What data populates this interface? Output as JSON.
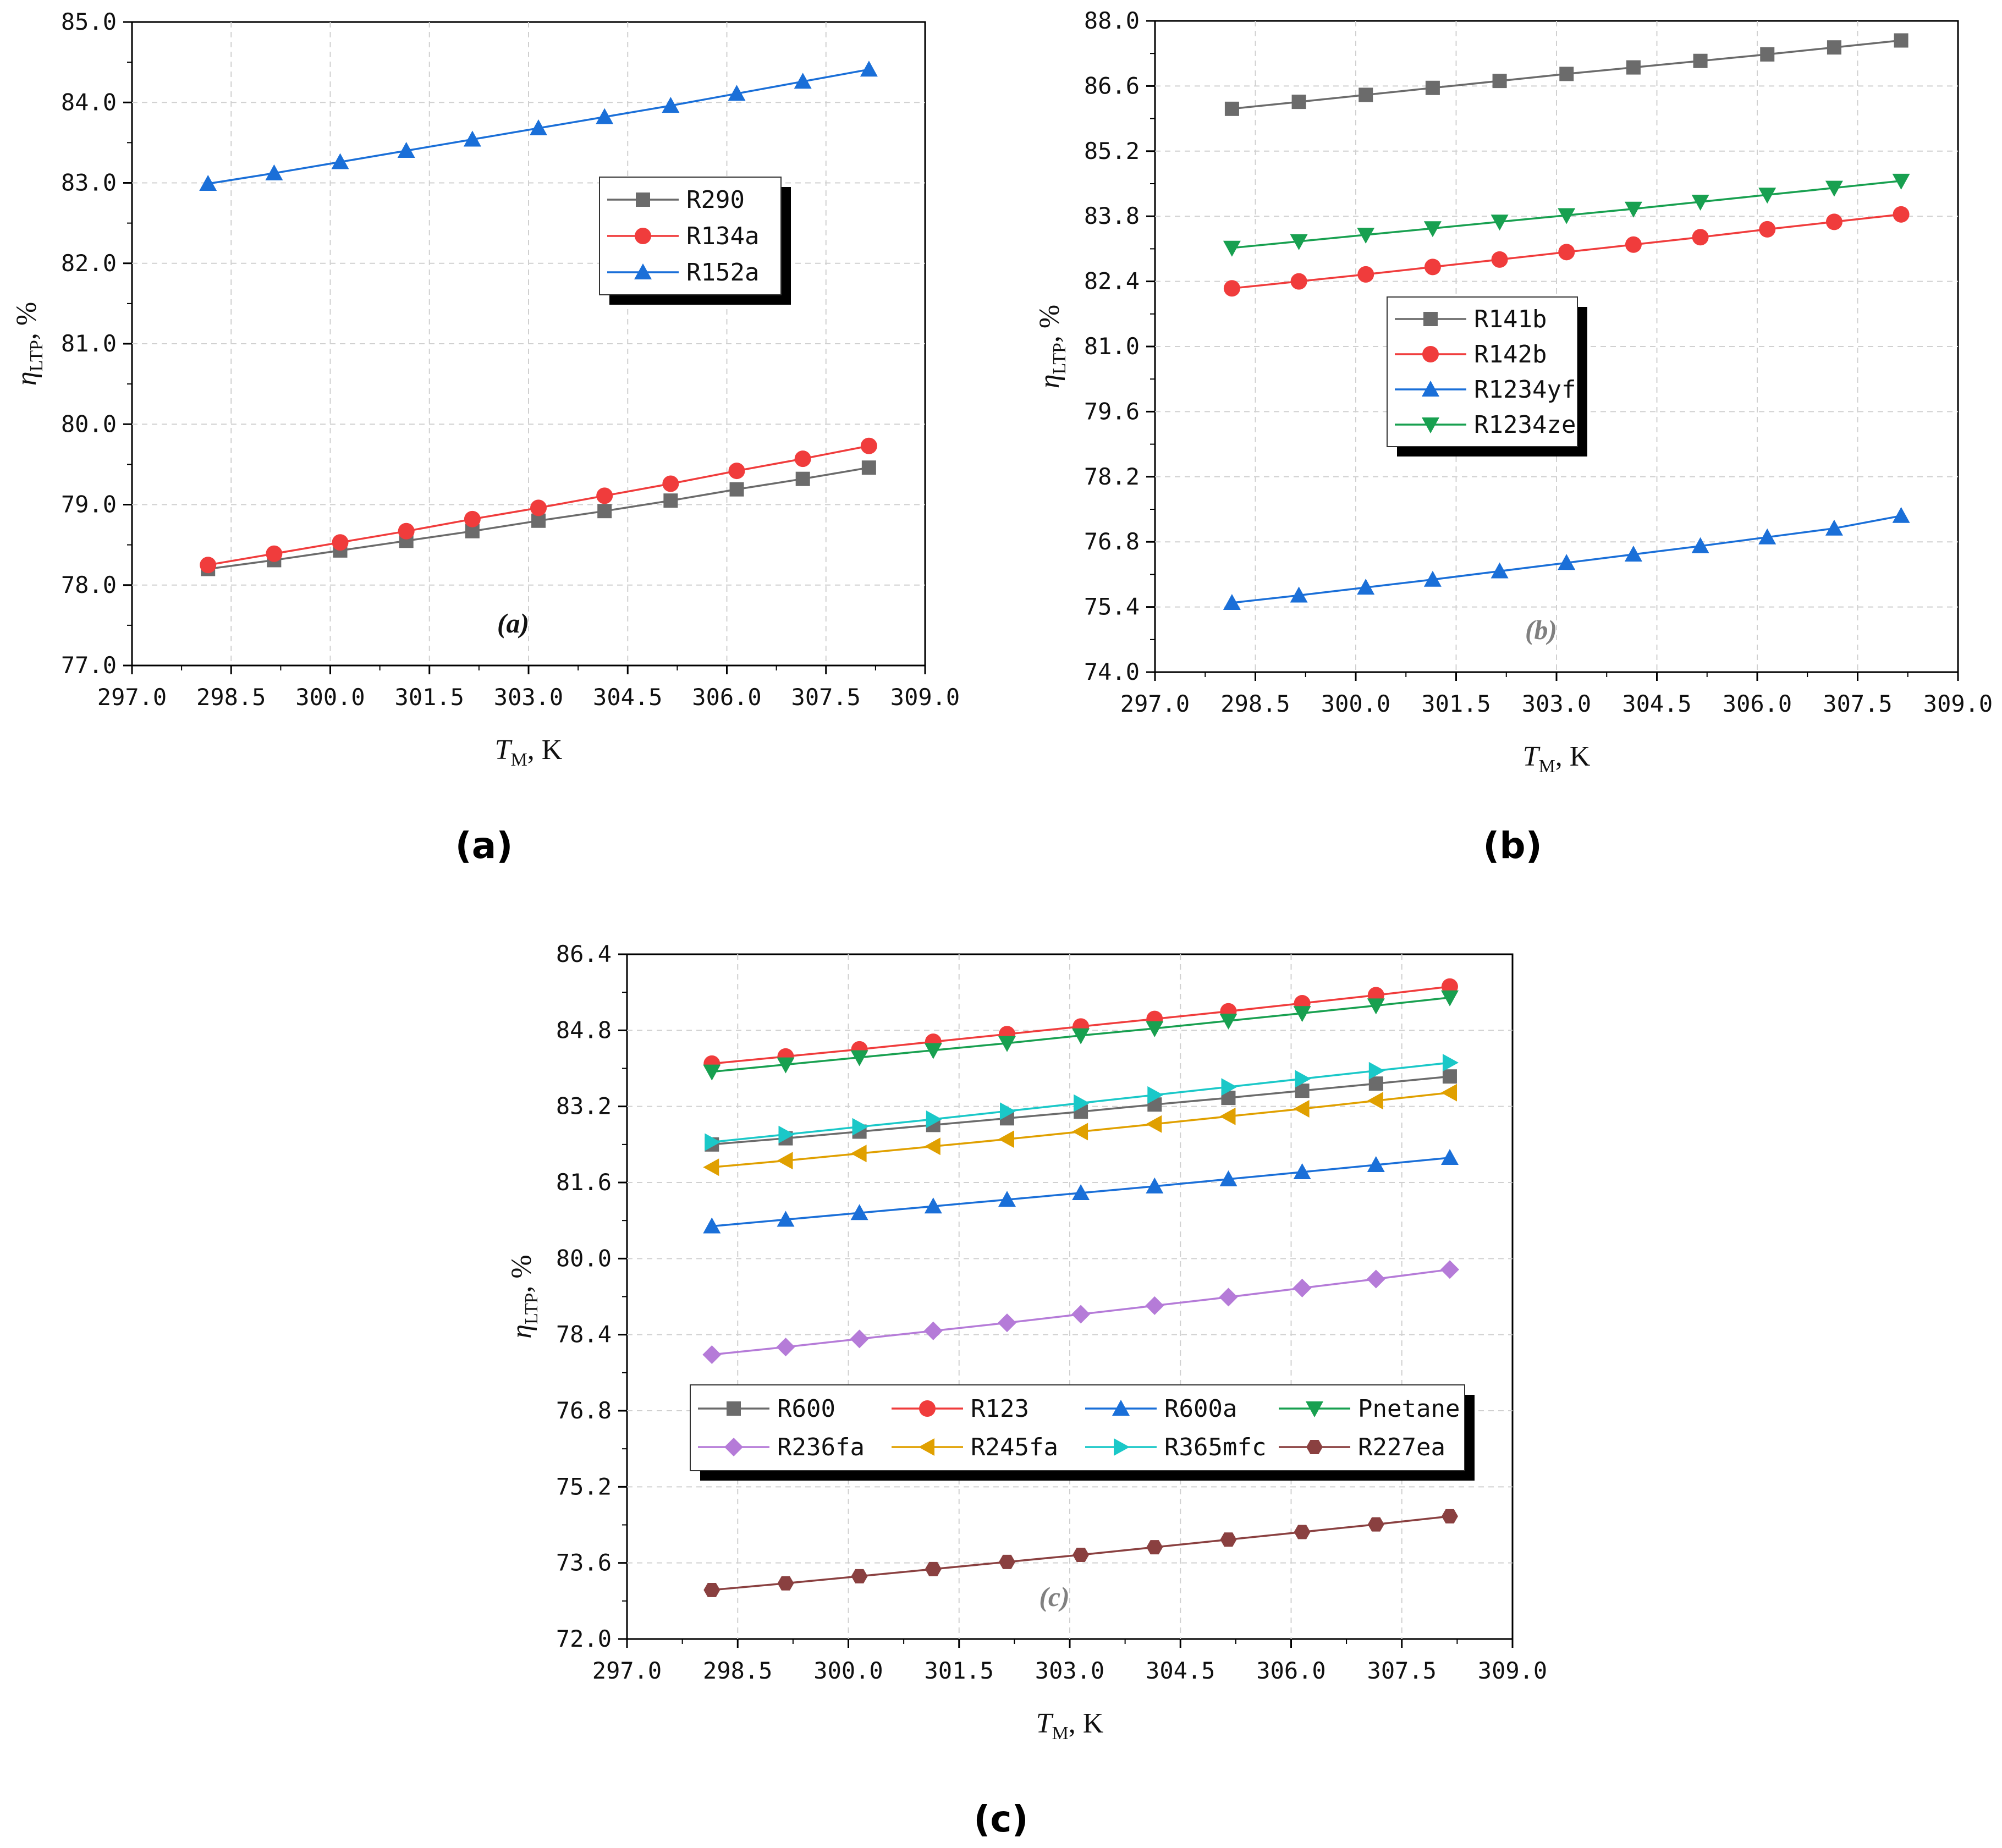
{
  "figure": {
    "captions": [
      "(a)",
      "(b)",
      "(c)"
    ]
  },
  "chart_data": [
    {
      "type": "line",
      "panel": "a",
      "inner_label": "(a)",
      "inner_label_color": "#111111",
      "xlabel_var": "T",
      "xlabel_sub": "M",
      "xlabel_unit": ", K",
      "ylabel_var": "η",
      "ylabel_sub": "LTP",
      "ylabel_unit": ", %",
      "xlim": [
        297.0,
        309.0
      ],
      "ylim": [
        77.0,
        85.0
      ],
      "xticks": [
        "297.0",
        "298.5",
        "300.0",
        "301.5",
        "303.0",
        "304.5",
        "306.0",
        "307.5",
        "309.0"
      ],
      "yticks": [
        "77.0",
        "78.0",
        "79.0",
        "80.0",
        "81.0",
        "82.0",
        "83.0",
        "84.0",
        "85.0"
      ],
      "grid": true,
      "legend_position": "center-right",
      "x": [
        298.15,
        299.15,
        300.15,
        301.15,
        302.15,
        303.15,
        304.15,
        305.15,
        306.15,
        307.15,
        308.15
      ],
      "series": [
        {
          "name": "R290",
          "color": "#6b6b6b",
          "marker": "square",
          "values": [
            78.2,
            78.31,
            78.43,
            78.55,
            78.67,
            78.8,
            78.92,
            79.05,
            79.19,
            79.32,
            79.46
          ]
        },
        {
          "name": "R134a",
          "color": "#f03c3c",
          "marker": "circle",
          "values": [
            78.25,
            78.39,
            78.53,
            78.67,
            78.82,
            78.96,
            79.11,
            79.26,
            79.42,
            79.57,
            79.73
          ]
        },
        {
          "name": "R152a",
          "color": "#1a6fd8",
          "marker": "triangle-up",
          "values": [
            82.99,
            83.12,
            83.26,
            83.4,
            83.54,
            83.68,
            83.82,
            83.96,
            84.11,
            84.26,
            84.41
          ]
        }
      ]
    },
    {
      "type": "line",
      "panel": "b",
      "inner_label": "(b)",
      "inner_label_color": "#808080",
      "xlabel_var": "T",
      "xlabel_sub": "M",
      "xlabel_unit": ", K",
      "ylabel_var": "η",
      "ylabel_sub": "LTP",
      "ylabel_unit": ", %",
      "xlim": [
        297.0,
        309.0
      ],
      "ylim": [
        74.0,
        88.0
      ],
      "xticks": [
        "297.0",
        "298.5",
        "300.0",
        "301.5",
        "303.0",
        "304.5",
        "306.0",
        "307.5",
        "309.0"
      ],
      "yticks": [
        "74.0",
        "75.4",
        "76.8",
        "78.2",
        "79.6",
        "81.0",
        "82.4",
        "83.8",
        "85.2",
        "86.6",
        "88.0"
      ],
      "grid": true,
      "legend_position": "center-left",
      "x": [
        298.15,
        299.15,
        300.15,
        301.15,
        302.15,
        303.15,
        304.15,
        305.15,
        306.15,
        307.15,
        308.15
      ],
      "series": [
        {
          "name": "R141b",
          "color": "#6b6b6b",
          "marker": "square",
          "values": [
            86.11,
            86.26,
            86.41,
            86.56,
            86.71,
            86.86,
            87.0,
            87.14,
            87.28,
            87.43,
            87.58
          ]
        },
        {
          "name": "R142b",
          "color": "#f03c3c",
          "marker": "circle",
          "values": [
            82.25,
            82.4,
            82.55,
            82.71,
            82.87,
            83.03,
            83.19,
            83.35,
            83.52,
            83.68,
            83.84
          ]
        },
        {
          "name": "R1234yf",
          "color": "#1a6fd8",
          "marker": "triangle-up",
          "values": [
            75.49,
            75.65,
            75.82,
            75.99,
            76.17,
            76.35,
            76.53,
            76.71,
            76.9,
            77.09,
            77.36
          ]
        },
        {
          "name": "R1234ze",
          "color": "#18a050",
          "marker": "triangle-down",
          "values": [
            83.12,
            83.26,
            83.4,
            83.54,
            83.68,
            83.82,
            83.96,
            84.11,
            84.26,
            84.41,
            84.56
          ]
        }
      ]
    },
    {
      "type": "line",
      "panel": "c",
      "inner_label": "(c)",
      "inner_label_color": "#808080",
      "xlabel_var": "T",
      "xlabel_sub": "M",
      "xlabel_unit": ", K",
      "ylabel_var": "η",
      "ylabel_sub": "LTP",
      "ylabel_unit": ", %",
      "xlim": [
        297.0,
        309.0
      ],
      "ylim": [
        72.0,
        86.4
      ],
      "xticks": [
        "297.0",
        "298.5",
        "300.0",
        "301.5",
        "303.0",
        "304.5",
        "306.0",
        "307.5",
        "309.0"
      ],
      "yticks": [
        "72.0",
        "73.6",
        "75.2",
        "76.8",
        "78.4",
        "80.0",
        "81.6",
        "83.2",
        "84.8",
        "86.4"
      ],
      "grid": true,
      "legend_position": "bottom-left",
      "x": [
        298.15,
        299.15,
        300.15,
        301.15,
        302.15,
        303.15,
        304.15,
        305.15,
        306.15,
        307.15,
        308.15
      ],
      "series": [
        {
          "name": "R600",
          "color": "#6b6b6b",
          "marker": "square",
          "values": [
            82.4,
            82.53,
            82.67,
            82.81,
            82.95,
            83.09,
            83.24,
            83.38,
            83.53,
            83.68,
            83.83
          ]
        },
        {
          "name": "R123",
          "color": "#f03c3c",
          "marker": "circle",
          "values": [
            84.1,
            84.25,
            84.4,
            84.56,
            84.72,
            84.88,
            85.04,
            85.2,
            85.37,
            85.54,
            85.72
          ]
        },
        {
          "name": "R600a",
          "color": "#1a6fd8",
          "marker": "triangle-up",
          "values": [
            80.68,
            80.82,
            80.96,
            81.1,
            81.24,
            81.38,
            81.52,
            81.67,
            81.82,
            81.97,
            82.12
          ]
        },
        {
          "name": "Pnetane",
          "color": "#18a050",
          "marker": "triangle-down",
          "values": [
            83.93,
            84.08,
            84.23,
            84.38,
            84.53,
            84.69,
            84.84,
            85.0,
            85.16,
            85.32,
            85.49
          ]
        },
        {
          "name": "R236fa",
          "color": "#b57bd8",
          "marker": "diamond",
          "values": [
            77.98,
            78.14,
            78.31,
            78.48,
            78.65,
            78.83,
            79.01,
            79.19,
            79.38,
            79.57,
            79.77
          ]
        },
        {
          "name": "R245fa",
          "color": "#e0a000",
          "marker": "triangle-left",
          "values": [
            81.92,
            82.06,
            82.21,
            82.36,
            82.51,
            82.67,
            82.83,
            82.99,
            83.15,
            83.32,
            83.49
          ]
        },
        {
          "name": "R365mfc",
          "color": "#1ac8c8",
          "marker": "triangle-right",
          "values": [
            82.45,
            82.61,
            82.77,
            82.93,
            83.1,
            83.27,
            83.44,
            83.61,
            83.78,
            83.95,
            84.12
          ]
        },
        {
          "name": "R227ea",
          "color": "#8a4040",
          "marker": "hexagon",
          "values": [
            73.03,
            73.17,
            73.32,
            73.47,
            73.62,
            73.77,
            73.93,
            74.09,
            74.25,
            74.41,
            74.58
          ]
        }
      ]
    }
  ]
}
